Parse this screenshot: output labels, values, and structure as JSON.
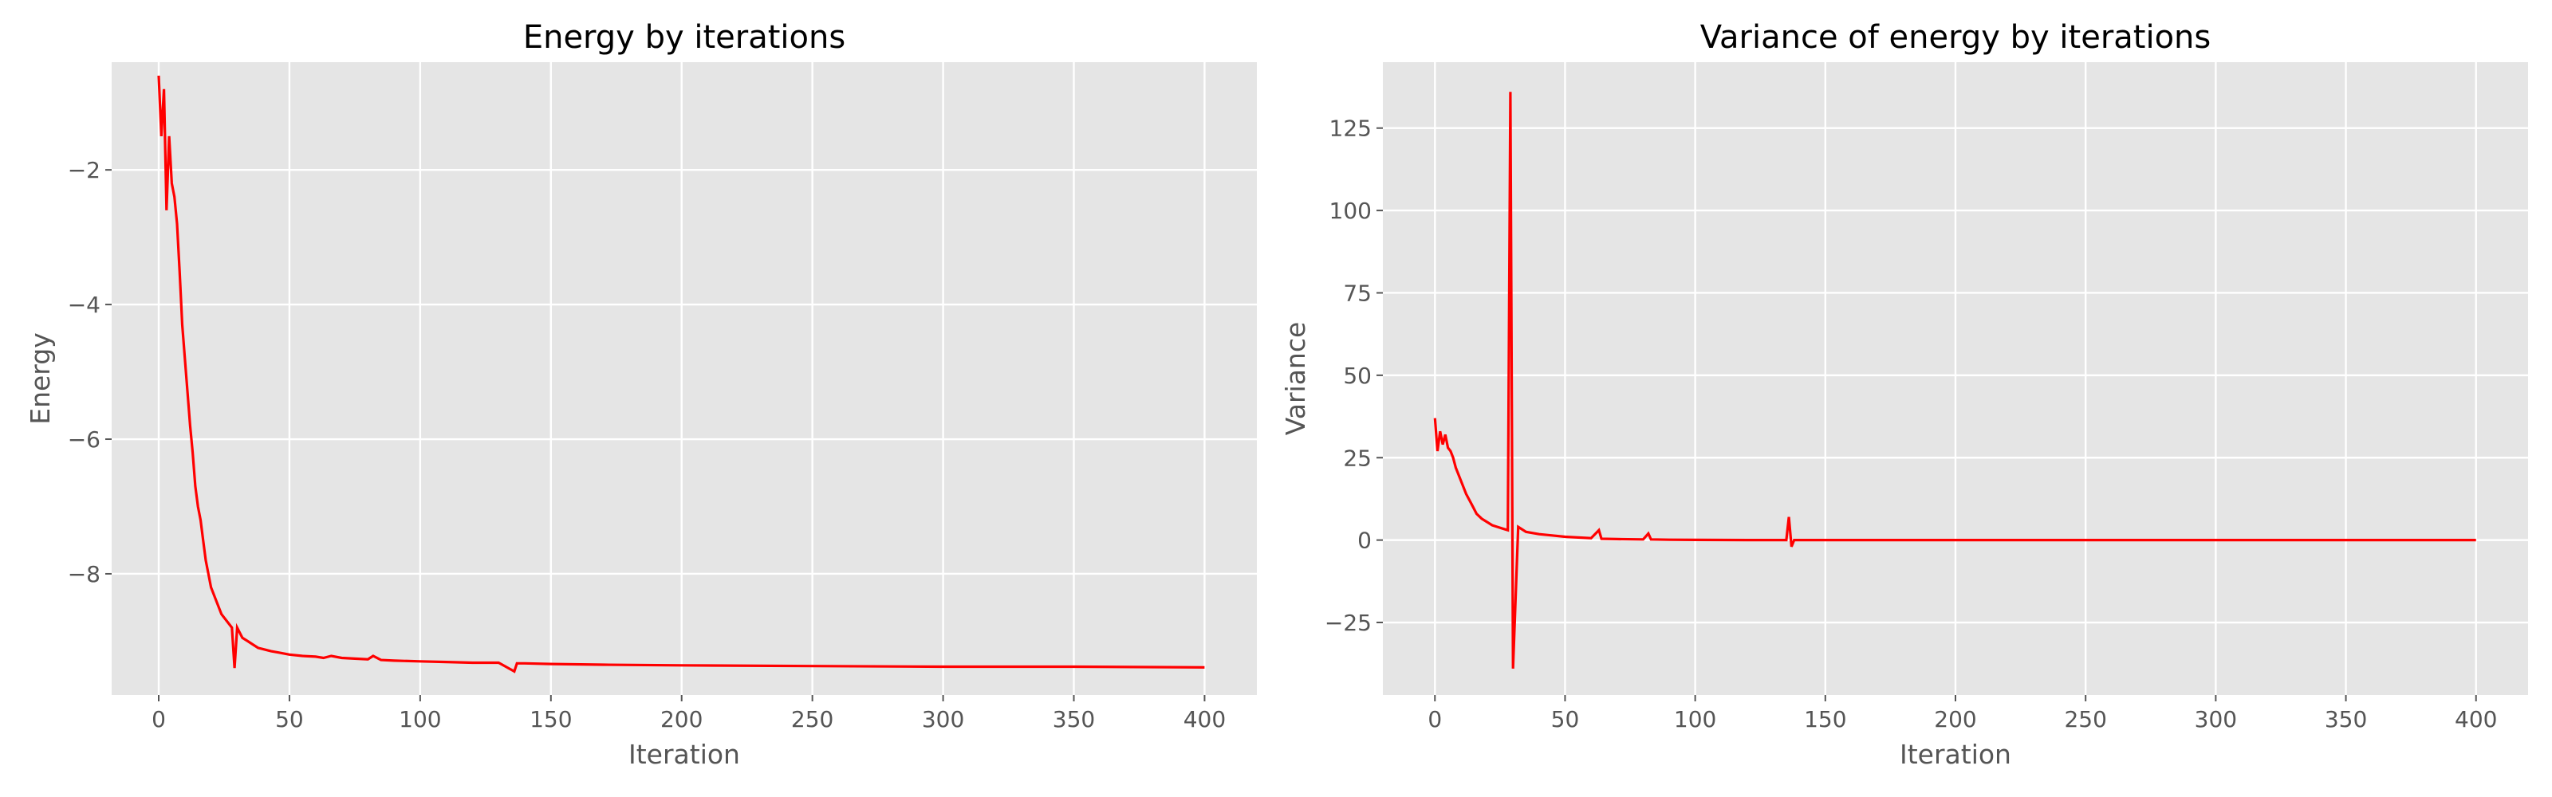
{
  "chart_data": [
    {
      "type": "line",
      "title": "Energy by iterations",
      "xlabel": "Iteration",
      "ylabel": "Energy",
      "xlim": [
        -18,
        420
      ],
      "ylim": [
        -9.8,
        -0.4
      ],
      "xticks": [
        0,
        50,
        100,
        150,
        200,
        250,
        300,
        350,
        400
      ],
      "yticks": [
        -2,
        -4,
        -6,
        -8
      ],
      "ytick_labels": [
        "−2",
        "−4",
        "−6",
        "−8"
      ],
      "grid": true,
      "series": [
        {
          "color": "#ff0000",
          "x": [
            0,
            1,
            2,
            3,
            4,
            5,
            6,
            7,
            8,
            9,
            10,
            11,
            12,
            13,
            14,
            15,
            16,
            17,
            18,
            19,
            20,
            22,
            24,
            26,
            28,
            29,
            30,
            32,
            34,
            36,
            38,
            40,
            43,
            46,
            50,
            55,
            60,
            63,
            66,
            70,
            75,
            80,
            82,
            85,
            90,
            100,
            110,
            120,
            130,
            136,
            137,
            140,
            150,
            170,
            200,
            250,
            300,
            350,
            400
          ],
          "y": [
            -0.6,
            -1.5,
            -0.8,
            -2.6,
            -1.5,
            -2.2,
            -2.4,
            -2.8,
            -3.5,
            -4.3,
            -4.8,
            -5.3,
            -5.8,
            -6.2,
            -6.7,
            -7.0,
            -7.2,
            -7.5,
            -7.8,
            -8.0,
            -8.2,
            -8.4,
            -8.6,
            -8.7,
            -8.8,
            -9.4,
            -8.8,
            -8.95,
            -9.0,
            -9.05,
            -9.1,
            -9.12,
            -9.15,
            -9.17,
            -9.2,
            -9.22,
            -9.23,
            -9.25,
            -9.22,
            -9.25,
            -9.26,
            -9.27,
            -9.22,
            -9.28,
            -9.29,
            -9.3,
            -9.31,
            -9.32,
            -9.32,
            -9.45,
            -9.33,
            -9.33,
            -9.34,
            -9.35,
            -9.36,
            -9.37,
            -9.38,
            -9.38,
            -9.39
          ]
        }
      ]
    },
    {
      "type": "line",
      "title": "Variance of energy by iterations",
      "xlabel": "Iteration",
      "ylabel": "Variance",
      "xlim": [
        -20,
        420
      ],
      "ylim": [
        -47,
        145
      ],
      "xticks": [
        0,
        50,
        100,
        150,
        200,
        250,
        300,
        350,
        400
      ],
      "yticks": [
        125,
        100,
        75,
        50,
        25,
        0,
        -25
      ],
      "ytick_labels": [
        "125",
        "100",
        "75",
        "50",
        "25",
        "0",
        "−25"
      ],
      "grid": true,
      "series": [
        {
          "color": "#ff0000",
          "x": [
            0,
            1,
            2,
            3,
            4,
            5,
            6,
            7,
            8,
            10,
            12,
            14,
            16,
            18,
            20,
            22,
            24,
            26,
            28,
            29,
            30,
            32,
            35,
            40,
            45,
            50,
            60,
            63,
            64,
            70,
            80,
            82,
            83,
            90,
            100,
            120,
            135,
            136,
            137,
            138,
            140,
            160,
            200,
            250,
            300,
            350,
            400
          ],
          "y": [
            37,
            27,
            33,
            29,
            32,
            28,
            27,
            25,
            22,
            18,
            14,
            11,
            8,
            6.5,
            5.5,
            4.5,
            4,
            3.5,
            3,
            136,
            -39,
            4,
            2.5,
            1.8,
            1.4,
            1.0,
            0.6,
            3,
            0.4,
            0.3,
            0.2,
            2,
            0.2,
            0.1,
            0.05,
            0,
            0,
            7,
            -2,
            0,
            0,
            0,
            0,
            0,
            0,
            0,
            0
          ]
        }
      ]
    }
  ]
}
